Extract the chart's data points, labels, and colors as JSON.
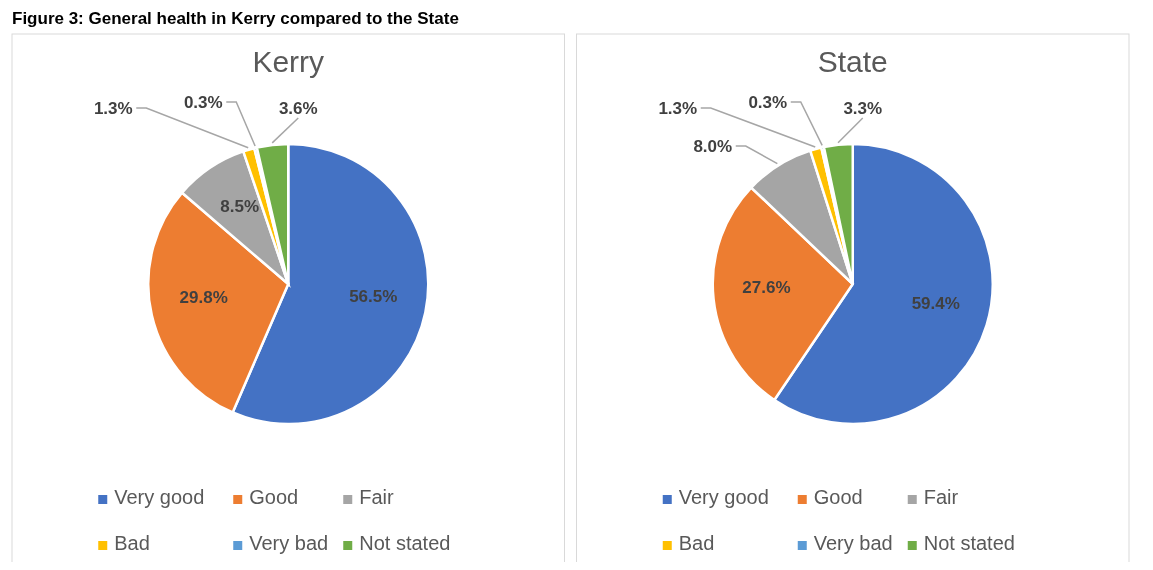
{
  "chart_data": [
    {
      "type": "pie",
      "title": "Kerry",
      "annotations": [
        "Figure 3: General health in Kerry compared to the State"
      ],
      "categories": [
        "Very good",
        "Good",
        "Fair",
        "Bad",
        "Very bad",
        "Not stated"
      ],
      "values": [
        56.5,
        29.8,
        8.5,
        1.3,
        0.3,
        3.6
      ],
      "value_labels": [
        "56.5%",
        "29.8%",
        "8.5%",
        "1.3%",
        "0.3%",
        "3.6%"
      ],
      "colors": [
        "#4472c4",
        "#ed7d31",
        "#a5a5a5",
        "#ffc000",
        "#5b9bd5",
        "#70ad47"
      ],
      "data_labels": true,
      "legend": "bottom"
    },
    {
      "type": "pie",
      "title": "State",
      "categories": [
        "Very good",
        "Good",
        "Fair",
        "Bad",
        "Very bad",
        "Not stated"
      ],
      "values": [
        59.4,
        27.6,
        8.0,
        1.3,
        0.3,
        3.3
      ],
      "value_labels": [
        "59.4%",
        "27.6%",
        "8.0%",
        "1.3%",
        "0.3%",
        "3.3%"
      ],
      "colors": [
        "#4472c4",
        "#ed7d31",
        "#a5a5a5",
        "#ffc000",
        "#5b9bd5",
        "#70ad47"
      ],
      "data_labels": true,
      "legend": "bottom"
    }
  ]
}
